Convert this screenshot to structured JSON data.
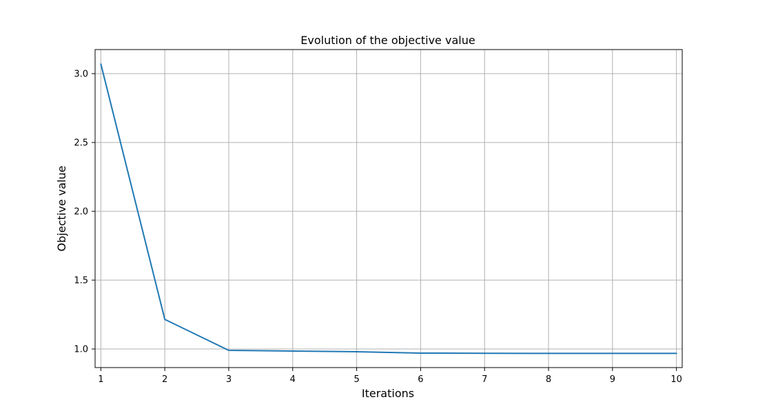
{
  "chart_data": {
    "type": "line",
    "title": "Evolution of the objective value",
    "xlabel": "Iterations",
    "ylabel": "Objective value",
    "x": [
      1,
      2,
      3,
      4,
      5,
      6,
      7,
      8,
      9,
      10
    ],
    "series": [
      {
        "values": [
          3.07,
          1.215,
          0.99,
          0.985,
          0.98,
          0.97,
          0.969,
          0.968,
          0.968,
          0.968
        ],
        "color": "#1f77b4"
      }
    ],
    "xlim": [
      0.91,
      10.09
    ],
    "ylim": [
      0.865,
      3.175
    ],
    "xticks": [
      1,
      2,
      3,
      4,
      5,
      6,
      7,
      8,
      9,
      10
    ],
    "xtick_labels": [
      "1",
      "2",
      "3",
      "4",
      "5",
      "6",
      "7",
      "8",
      "9",
      "10"
    ],
    "yticks": [
      1.0,
      1.5,
      2.0,
      2.5,
      3.0
    ],
    "ytick_labels": [
      "1.0",
      "1.5",
      "2.0",
      "2.5",
      "3.0"
    ],
    "grid": true,
    "grid_color": "#b0b0b0",
    "axis_color": "#000000"
  }
}
